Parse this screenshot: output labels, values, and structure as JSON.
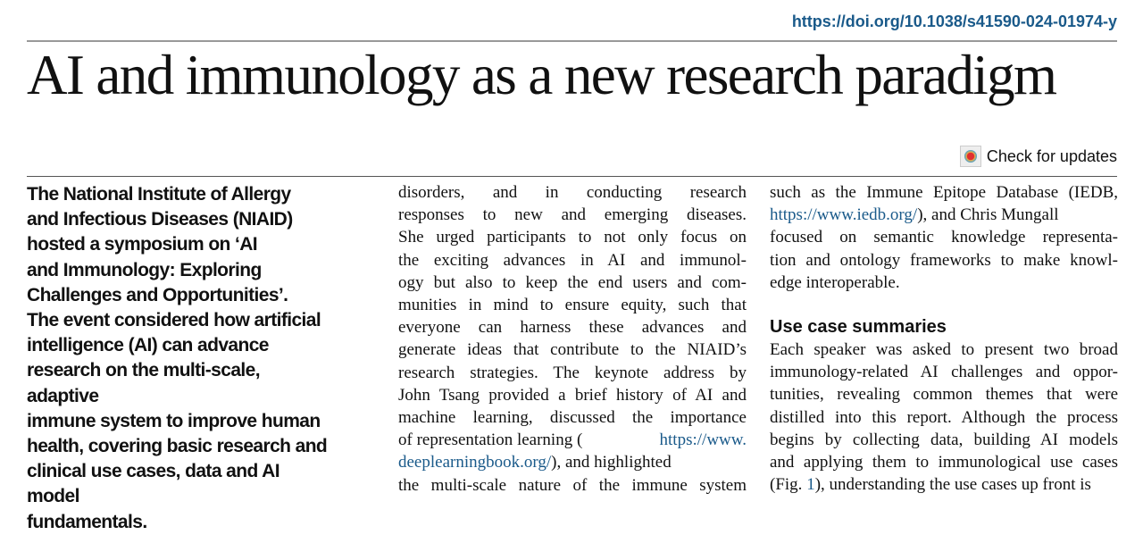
{
  "doi": "https://doi.org/10.1038/s41590-024-01974-y",
  "title": "AI and immunology as a new research paradigm",
  "check_updates": "Check for updates",
  "lead_lines": [
    "The National Institute of Allergy",
    "and Infectious Diseases (NIAID)",
    "hosted a symposium on ‘AI",
    "and Immunology: Exploring",
    "Challenges and Opportunities’.",
    "The event considered how artificial",
    "intelligence (AI) can advance",
    "research on the multi-scale, adaptive",
    "immune system to improve human",
    "health, covering basic research and",
    "clinical use cases, data and AI model",
    "fundamentals."
  ],
  "middle_lines": [
    "disorders, and in conducting research",
    "responses to new and emerging diseases.",
    "She urged participants to not only focus on",
    "the exciting advances in AI and immunol-",
    "ogy but also to keep the end users and com-",
    "munities in mind to ensure equity, such that",
    "everyone can harness these advances and",
    "generate ideas that contribute to the NIAID’s",
    "research strategies. The keynote address by",
    "John Tsang provided a brief history of AI and",
    "machine learning, discussed the importance",
    "of representation learning (",
    "https://www.",
    "deeplearningbook.org/",
    "), and highlighted",
    "the multi-scale nature of the immune system"
  ],
  "right_top_lines": [
    "such as the Immune Epitope Database (IEDB,",
    "https://www.iedb.org/",
    "), and Chris Mungall",
    "focused on semantic knowledge representa-",
    "tion and ontology frameworks to make knowl-",
    "edge interoperable."
  ],
  "section_heading": "Use case summaries",
  "right_bottom_lines": [
    "Each speaker was asked to present two broad",
    "immunology-related AI challenges and oppor-",
    "tunities, revealing common themes that were",
    "distilled into this report. Although the process",
    "begins by collecting data, building AI models",
    "and applying them to immunological use cases",
    "(Fig. ",
    "1",
    "), understanding the use cases up front is"
  ]
}
